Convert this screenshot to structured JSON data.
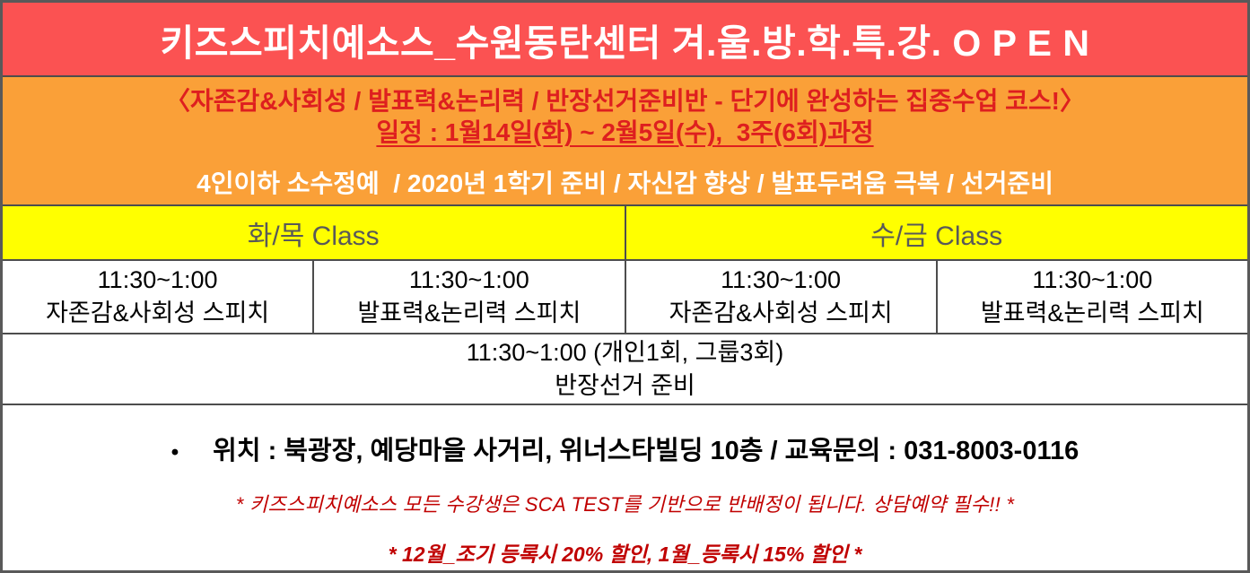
{
  "banner": {
    "title": "키즈스피치예소스_수원동탄센터 겨.울.방.학.특.강. O P E N"
  },
  "intro": {
    "course_line": "〈자존감&사회성 / 발표력&논리력 / 반장선거준비반 - 단기에 완성하는 집중수업 코스!〉",
    "date_line": "일정 : 1월14일(화) ~ 2월5일(수),  3주(6회)과정",
    "feature_line": "4인이하 소수정예  / 2020년 1학기 준비 / 자신감 향상 / 발표두려움 극복 / 선거준비"
  },
  "schedule": {
    "headers": [
      {
        "label": "화/목 Class"
      },
      {
        "label": "수/금 Class"
      }
    ],
    "cells": [
      {
        "time": "11:30~1:00",
        "name": "자존감&사회성 스피치"
      },
      {
        "time": "11:30~1:00",
        "name": "발표력&논리력 스피치"
      },
      {
        "time": "11:30~1:00",
        "name": "자존감&사회성 스피치"
      },
      {
        "time": "11:30~1:00",
        "name": "발표력&논리력 스피치"
      }
    ],
    "full_row": {
      "time": "11:30~1:00 (개인1회, 그룹3회)",
      "name": "반장선거 준비"
    }
  },
  "footer": {
    "bullet": "•",
    "location": "위치 : 북광장, 예당마을 사거리, 위너스타빌딩 10층 / 교육문의 : 031-8003-0116",
    "note1": "* 키즈스피치예소스 모든 수강생은 SCA TEST를 기반으로 반배정이 됩니다. 상담예약 필수!! *",
    "note2": "* 12월_조기 등록시 20% 할인, 1월_등록시 15% 할인 *"
  },
  "colors": {
    "banner_bg": "#FB5252",
    "orange_bg": "#FAA038",
    "red_text": "#DE1F1F",
    "yellow_bg": "#FFFF00",
    "yellow_text": "#595959",
    "note_red": "#C00000",
    "border": "#4d4d4d"
  }
}
